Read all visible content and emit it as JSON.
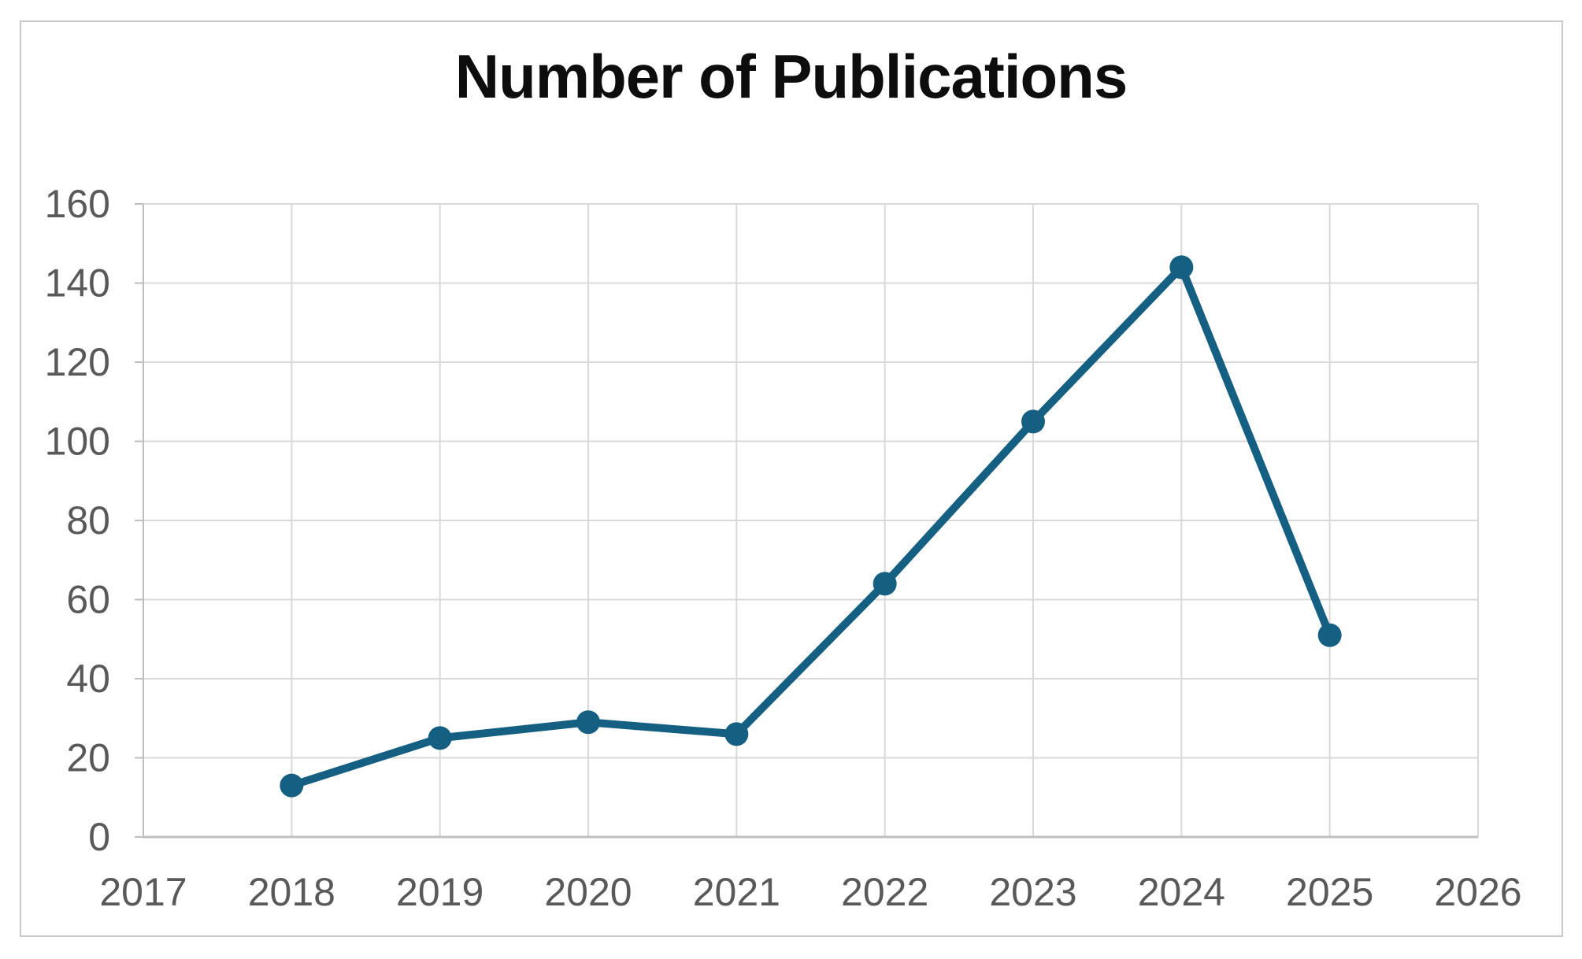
{
  "chart_data": {
    "type": "line",
    "title": "Number of Publications",
    "series": [
      {
        "name": "Number of Publications",
        "x": [
          2018,
          2019,
          2020,
          2021,
          2022,
          2023,
          2024,
          2025
        ],
        "values": [
          13,
          25,
          29,
          26,
          64,
          105,
          144,
          51
        ]
      }
    ],
    "x_ticks": [
      "2017",
      "2018",
      "2019",
      "2020",
      "2021",
      "2022",
      "2023",
      "2024",
      "2025",
      "2026"
    ],
    "x_tick_values": [
      2017,
      2018,
      2019,
      2020,
      2021,
      2022,
      2023,
      2024,
      2025,
      2026
    ],
    "y_ticks": [
      "0",
      "20",
      "40",
      "60",
      "80",
      "100",
      "120",
      "140",
      "160"
    ],
    "y_tick_values": [
      0,
      20,
      40,
      60,
      80,
      100,
      120,
      140,
      160
    ],
    "xlim": [
      2017,
      2026
    ],
    "ylim": [
      0,
      160
    ],
    "grid": true,
    "legend_position": "none",
    "colors": {
      "line": "#156082",
      "marker": "#156082",
      "gridline": "#d9d9d9",
      "axis_line": "#bfbfbf",
      "tick_label": "#595959",
      "title": "#0d0d0d",
      "frame_border": "#c9c9c9",
      "background": "#ffffff"
    }
  }
}
